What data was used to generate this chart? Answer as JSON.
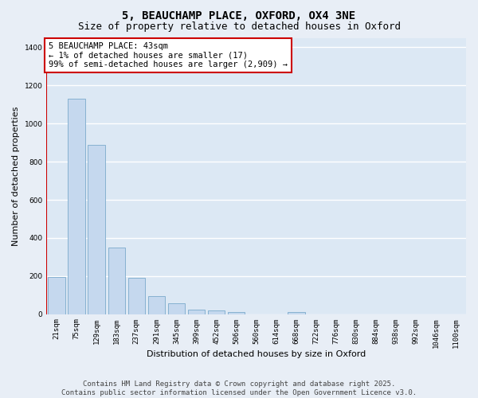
{
  "title": "5, BEAUCHAMP PLACE, OXFORD, OX4 3NE",
  "subtitle": "Size of property relative to detached houses in Oxford",
  "xlabel": "Distribution of detached houses by size in Oxford",
  "ylabel": "Number of detached properties",
  "categories": [
    "21sqm",
    "75sqm",
    "129sqm",
    "183sqm",
    "237sqm",
    "291sqm",
    "345sqm",
    "399sqm",
    "452sqm",
    "506sqm",
    "560sqm",
    "614sqm",
    "668sqm",
    "722sqm",
    "776sqm",
    "830sqm",
    "884sqm",
    "938sqm",
    "992sqm",
    "1046sqm",
    "1100sqm"
  ],
  "values": [
    195,
    1130,
    890,
    350,
    193,
    95,
    58,
    22,
    20,
    13,
    0,
    0,
    10,
    0,
    0,
    0,
    0,
    0,
    0,
    0,
    0
  ],
  "bar_color": "#c5d8ee",
  "bar_edge_color": "#7aaacc",
  "annotation_text_line1": "5 BEAUCHAMP PLACE: 43sqm",
  "annotation_text_line2": "← 1% of detached houses are smaller (17)",
  "annotation_text_line3": "99% of semi-detached houses are larger (2,909) →",
  "red_color": "#cc0000",
  "ylim": [
    0,
    1450
  ],
  "yticks": [
    0,
    200,
    400,
    600,
    800,
    1000,
    1200,
    1400
  ],
  "plot_bg_color": "#dce8f4",
  "grid_color": "#ffffff",
  "fig_bg_color": "#e8eef6",
  "footer_line1": "Contains HM Land Registry data © Crown copyright and database right 2025.",
  "footer_line2": "Contains public sector information licensed under the Open Government Licence v3.0.",
  "title_fontsize": 10,
  "subtitle_fontsize": 9,
  "axis_label_fontsize": 8,
  "tick_fontsize": 6.5,
  "annotation_fontsize": 7.5,
  "footer_fontsize": 6.5
}
